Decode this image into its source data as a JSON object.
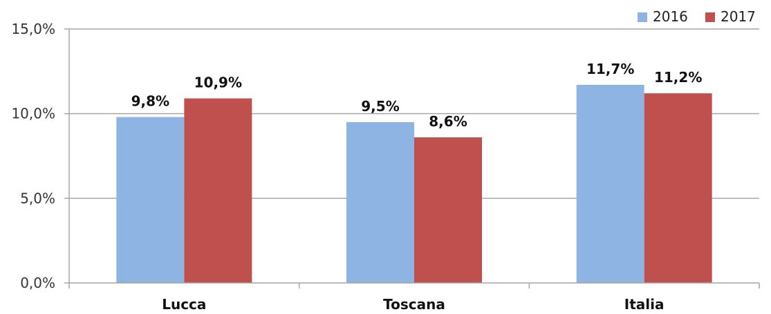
{
  "chart_data": {
    "type": "bar",
    "categories": [
      "Lucca",
      "Toscana",
      "Italia"
    ],
    "series": [
      {
        "name": "2016",
        "values": [
          9.8,
          9.5,
          11.7
        ],
        "labels": [
          "9,8%",
          "9,5%",
          "11,7%"
        ],
        "color": "#8EB4E3"
      },
      {
        "name": "2017",
        "values": [
          10.9,
          8.6,
          11.2
        ],
        "labels": [
          "10,9%",
          "8,6%",
          "11,2%"
        ],
        "color": "#C0504D"
      }
    ],
    "ylim": [
      0,
      15
    ],
    "yticks": [
      0,
      5,
      10,
      15
    ],
    "ytick_labels": [
      "0,0%",
      "5,0%",
      "10,0%",
      "15,0%"
    ],
    "grid": true,
    "legend_position": "top-right",
    "gridline_color": "#A6A6A6",
    "axis_color": "#A6A6A6"
  }
}
